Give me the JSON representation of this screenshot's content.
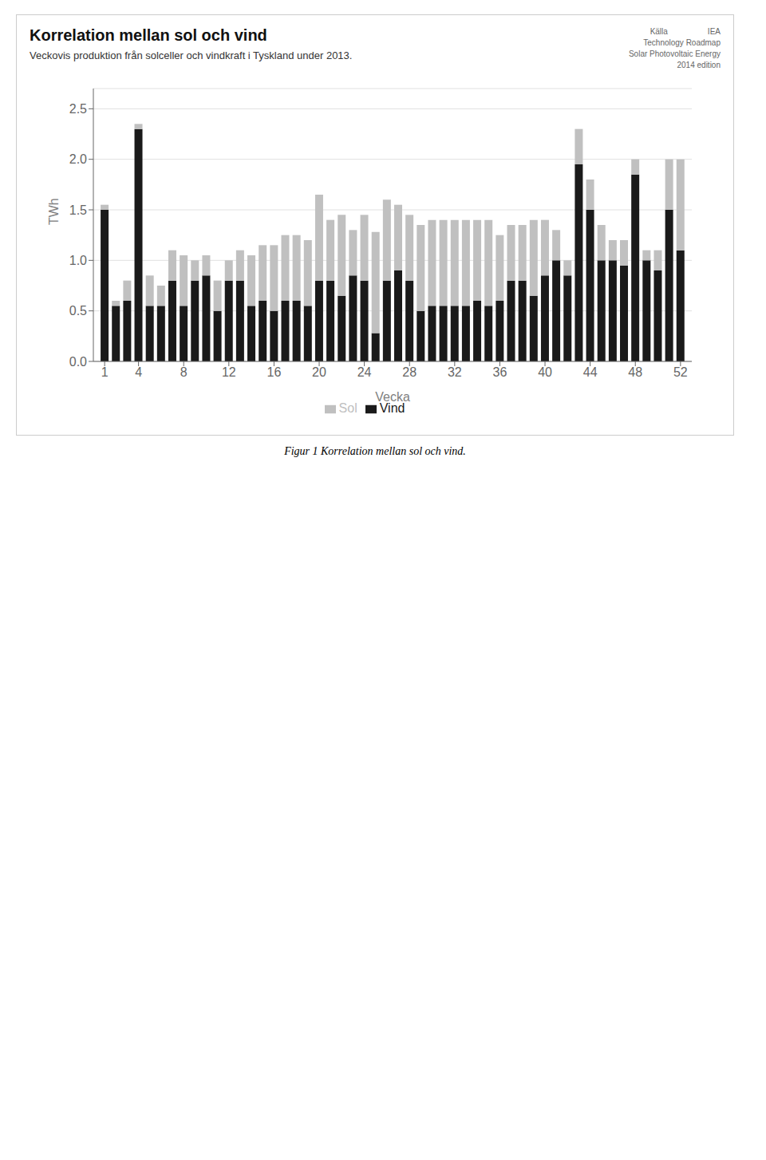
{
  "chart_data": {
    "type": "bar",
    "stacked": true,
    "title": "Korrelation mellan sol och vind",
    "subtitle": "Veckovis produktion från solceller och vindkraft i Tyskland under 2013.",
    "annotations": [
      "Källa                  IEA",
      "Technology Roadmap",
      "Solar Photovoltaic Energy",
      "2014 edition"
    ],
    "caption": "Figur 1 Korrelation mellan sol och vind.",
    "x_label": "Vecka",
    "y_label": "TWh",
    "x": [
      1,
      2,
      3,
      4,
      5,
      6,
      7,
      8,
      9,
      10,
      11,
      12,
      13,
      14,
      15,
      16,
      17,
      18,
      19,
      20,
      21,
      22,
      23,
      24,
      25,
      26,
      27,
      28,
      29,
      30,
      31,
      32,
      33,
      34,
      35,
      36,
      37,
      38,
      39,
      40,
      41,
      42,
      43,
      44,
      45,
      46,
      47,
      48,
      49,
      50,
      51,
      52
    ],
    "series": [
      {
        "name": "Vind",
        "color": "#1a1a1a",
        "values": [
          1.5,
          0.55,
          0.6,
          2.3,
          0.55,
          0.55,
          0.8,
          0.55,
          0.8,
          0.85,
          0.5,
          0.8,
          0.8,
          0.55,
          0.6,
          0.5,
          0.6,
          0.6,
          0.55,
          0.8,
          0.8,
          0.65,
          0.85,
          0.8,
          0.28,
          0.8,
          0.9,
          0.8,
          0.5,
          0.55,
          0.55,
          0.55,
          0.55,
          0.6,
          0.55,
          0.6,
          0.8,
          0.8,
          0.65,
          0.85,
          1.0,
          0.85,
          1.95,
          1.5,
          1.0,
          1.0,
          0.95,
          1.85,
          1.0,
          0.9,
          1.5,
          1.1
        ]
      },
      {
        "name": "Sol",
        "color": "#c0c0c0",
        "values": [
          0.05,
          0.05,
          0.2,
          0.05,
          0.3,
          0.2,
          0.3,
          0.5,
          0.2,
          0.2,
          0.3,
          0.2,
          0.3,
          0.5,
          0.55,
          0.65,
          0.65,
          0.65,
          0.65,
          0.85,
          0.6,
          0.8,
          0.45,
          0.65,
          1.0,
          0.8,
          0.65,
          0.65,
          0.85,
          0.85,
          0.85,
          0.85,
          0.85,
          0.8,
          0.85,
          0.65,
          0.55,
          0.55,
          0.75,
          0.55,
          0.3,
          0.15,
          0.35,
          0.3,
          0.35,
          0.2,
          0.25,
          0.15,
          0.1,
          0.2,
          0.5,
          0.9
        ]
      }
    ],
    "xlim": [
      0,
      53
    ],
    "xticks": [
      1,
      4,
      8,
      12,
      16,
      20,
      24,
      28,
      32,
      36,
      40,
      44,
      48,
      52
    ],
    "ylim": [
      0,
      2.7
    ],
    "yticks": [
      {
        "value": 0,
        "label": "0.0"
      },
      0.5,
      {
        "value": 1,
        "label": "1.0"
      },
      1.5,
      {
        "value": 2,
        "label": "2.0"
      },
      2.5
    ],
    "grid": true,
    "legend": "bottom"
  }
}
